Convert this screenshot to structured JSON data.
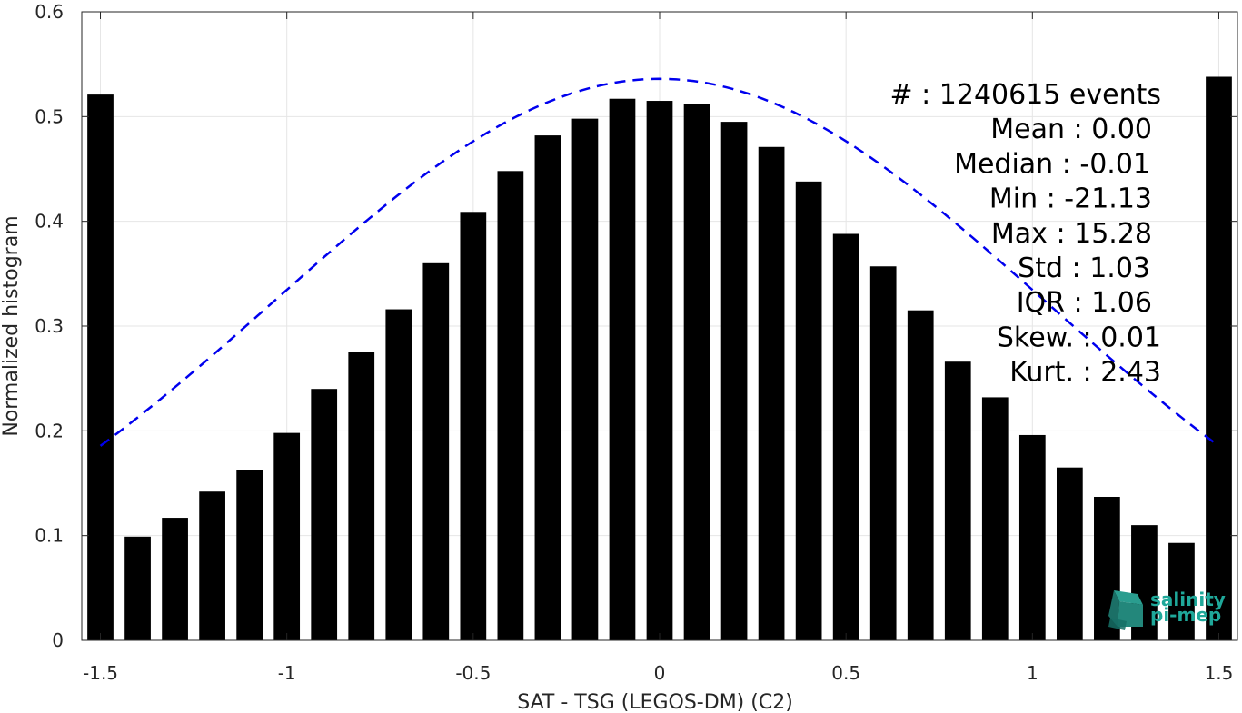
{
  "chart_data": {
    "type": "bar",
    "xlabel": "SAT - TSG (LEGOS-DM) (C2)",
    "ylabel": "Normalized histogram",
    "xlim": [
      -1.55,
      1.55
    ],
    "ylim": [
      0,
      0.6
    ],
    "xticks": [
      -1.5,
      -1,
      -0.5,
      0,
      0.5,
      1,
      1.5
    ],
    "xtick_labels": [
      "-1.5",
      "-1",
      "-0.5",
      "0",
      "0.5",
      "1",
      "1.5"
    ],
    "yticks": [
      0,
      0.1,
      0.2,
      0.3,
      0.4,
      0.5,
      0.6
    ],
    "ytick_labels": [
      "0",
      "0.1",
      "0.2",
      "0.3",
      "0.4",
      "0.5",
      "0.6"
    ],
    "grid": true,
    "bar_color": "#000000",
    "bar_width": 0.07,
    "x": [
      -1.5,
      -1.4,
      -1.3,
      -1.2,
      -1.1,
      -1.0,
      -0.9,
      -0.8,
      -0.7,
      -0.6,
      -0.5,
      -0.4,
      -0.3,
      -0.2,
      -0.1,
      0.0,
      0.1,
      0.2,
      0.3,
      0.4,
      0.5,
      0.6,
      0.7,
      0.8,
      0.9,
      1.0,
      1.1,
      1.2,
      1.3,
      1.4,
      1.5
    ],
    "values": [
      0.521,
      0.099,
      0.117,
      0.142,
      0.163,
      0.198,
      0.24,
      0.275,
      0.316,
      0.36,
      0.409,
      0.448,
      0.482,
      0.498,
      0.517,
      0.515,
      0.512,
      0.495,
      0.471,
      0.438,
      0.388,
      0.357,
      0.315,
      0.266,
      0.232,
      0.196,
      0.165,
      0.137,
      0.11,
      0.093,
      0.538
    ],
    "fit_curve": {
      "color": "#0000ee",
      "style": "dashed",
      "mean": 0.0,
      "std": 1.03,
      "peak": 0.536,
      "x_range": [
        -1.5,
        1.5
      ]
    },
    "stats": [
      "#  : 1240615 events",
      "Mean : 0.00",
      "Median : -0.01",
      "Min : -21.13",
      "Max : 15.28",
      "Std : 1.03",
      "IQR : 1.06",
      "Skew. : 0.01",
      "Kurt. : 2.43"
    ]
  },
  "logo": {
    "line1": "salinity",
    "line2": "pi-mep",
    "color": "#1fa89a"
  }
}
